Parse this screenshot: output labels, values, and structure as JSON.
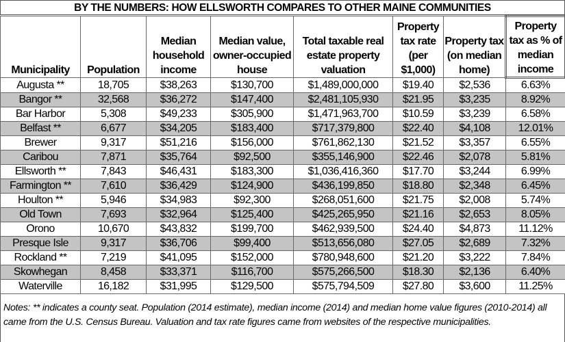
{
  "title": "BY THE NUMBERS: HOW ELLSWORTH COMPARES TO OTHER MAINE COMMUNITIES",
  "headers": [
    "Municipality",
    "Population",
    "Median household income",
    "Median value, owner-occupied house",
    "Total taxable real estate property valuation",
    "Property tax rate (per $1,000)",
    "Property tax (on median home)",
    "Property tax as % of median income"
  ],
  "rows": [
    [
      "Augusta **",
      "18,705",
      "$38,263",
      "$130,700",
      "$1,489,000,000",
      "$19.40",
      "$2,536",
      "6.63%"
    ],
    [
      "Bangor **",
      "32,568",
      "$36,272",
      "$147,400",
      "$2,481,105,930",
      "$21.95",
      "$3,235",
      "8.92%"
    ],
    [
      "Bar Harbor",
      "5,308",
      "$49,233",
      "$305,900",
      "$1,471,963,700",
      "$10.59",
      "$3,239",
      "6.58%"
    ],
    [
      "Belfast **",
      "6,677",
      "$34,205",
      "$183,400",
      "$717,379,800",
      "$22.40",
      "$4,108",
      "12.01%"
    ],
    [
      "Brewer",
      "9,317",
      "$51,216",
      "$156,000",
      "$761,862,130",
      "$21.52",
      "$3,357",
      "6.55%"
    ],
    [
      "Caribou",
      "7,871",
      "$35,764",
      "$92,500",
      "$355,146,900",
      "$22.46",
      "$2,078",
      "5.81%"
    ],
    [
      "Ellsworth **",
      "7,843",
      "$46,431",
      "$183,300",
      "$1,036,416,360",
      "$17.70",
      "$3,244",
      "6.99%"
    ],
    [
      "Farmington **",
      "7,610",
      "$36,429",
      "$124,900",
      "$436,199,850",
      "$18.80",
      "$2,348",
      "6.45%"
    ],
    [
      "Houlton **",
      "5,946",
      "$34,983",
      "$92,300",
      "$268,051,600",
      "$21.75",
      "$2,008",
      "5.74%"
    ],
    [
      "Old Town",
      "7,693",
      "$32,964",
      "$125,400",
      "$425,265,950",
      "$21.16",
      "$2,653",
      "8.05%"
    ],
    [
      "Orono",
      "10,670",
      "$43,832",
      "$199,700",
      "$462,939,500",
      "$24.40",
      "$4,873",
      "11.12%"
    ],
    [
      "Presque Isle",
      "9,317",
      "$36,706",
      "$99,400",
      "$513,656,080",
      "$27.05",
      "$2,689",
      "7.32%"
    ],
    [
      "Rockland **",
      "7,219",
      "$41,095",
      "$152,000",
      "$780,948,600",
      "$21.20",
      "$3,222",
      "7.84%"
    ],
    [
      "Skowhegan",
      "8,458",
      "$33,371",
      "$116,700",
      "$575,266,500",
      "$18.30",
      "$2,136",
      "6.40%"
    ],
    [
      "Waterville",
      "16,182",
      "$31,995",
      "$129,500",
      "$575,794,509",
      "$27.80",
      "$3,600",
      "11.25%"
    ]
  ],
  "notes": "Notes: ** indicates a county seat. Population (2014 estimate), median income (2014) and median home value figures (2010-2014) all came from the U.S. Census Bureau. Valuation and tax rate figures came from websites of the respective municipalities.",
  "colors": {
    "alt_row": "#c4c4c4",
    "border": "#666666"
  }
}
